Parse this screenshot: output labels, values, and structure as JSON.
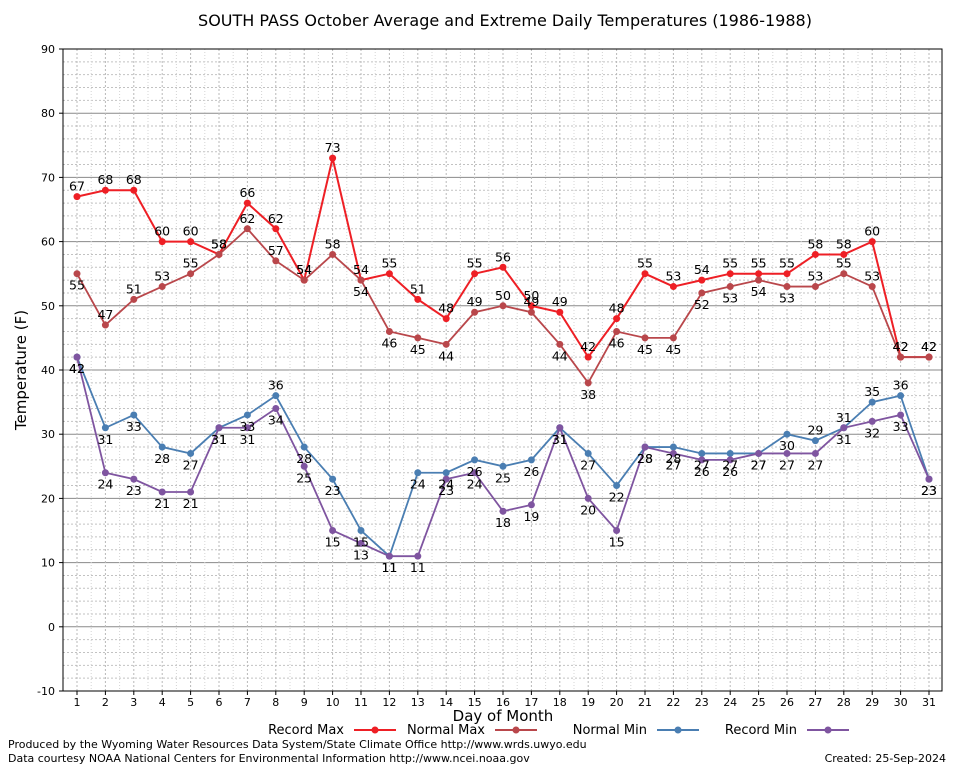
{
  "chart_data": {
    "type": "line",
    "title": "SOUTH PASS October Average and Extreme Daily Temperatures (1986-1988)",
    "xlabel": "Day of Month",
    "ylabel": "Temperature (F)",
    "x": [
      1,
      2,
      3,
      4,
      5,
      6,
      7,
      8,
      9,
      10,
      11,
      12,
      13,
      14,
      15,
      16,
      17,
      18,
      19,
      20,
      21,
      22,
      23,
      24,
      25,
      26,
      27,
      28,
      29,
      30,
      31
    ],
    "ylim": [
      -10,
      90
    ],
    "yticks": [
      -10,
      0,
      10,
      20,
      30,
      40,
      50,
      60,
      70,
      80,
      90
    ],
    "grid": true,
    "legend": "bottom",
    "series": [
      {
        "name": "Record Max",
        "color": "#ee1f25",
        "values": [
          67,
          68,
          68,
          60,
          60,
          58,
          66,
          62,
          54,
          73,
          54,
          55,
          51,
          48,
          55,
          56,
          50,
          49,
          42,
          48,
          55,
          53,
          54,
          55,
          55,
          55,
          58,
          58,
          60,
          42,
          42
        ],
        "labels": [
          "67",
          "68",
          "68",
          "60",
          "60",
          "58",
          "66",
          "62",
          "54",
          "73",
          "54",
          "55",
          "51",
          "48",
          "55",
          "56",
          "50",
          "49",
          "42",
          "48",
          "55",
          "53",
          "54",
          "55",
          "55",
          "55",
          "58",
          "58",
          "60",
          "42",
          "42"
        ]
      },
      {
        "name": "Normal Max",
        "color": "#b9474b",
        "values": [
          55,
          47,
          51,
          53,
          55,
          58,
          62,
          57,
          54,
          58,
          54,
          46,
          45,
          44,
          49,
          50,
          49,
          44,
          38,
          46,
          45,
          45,
          52,
          53,
          54,
          53,
          53,
          55,
          53,
          42,
          42
        ],
        "labels": [
          "55",
          "47",
          "51",
          "53",
          "55",
          "58",
          "62",
          "57",
          "54",
          "58",
          "54",
          "46",
          "45",
          "44",
          "49",
          "50",
          "49",
          "44",
          "38",
          "46",
          "45",
          "45",
          "52",
          "53",
          "54",
          "53",
          "53",
          "55",
          "53",
          "42",
          "42"
        ]
      },
      {
        "name": "Normal Min",
        "color": "#4a7eb2",
        "values": [
          42,
          31,
          33,
          28,
          27,
          31,
          33,
          36,
          28,
          23,
          15,
          11,
          24,
          24,
          26,
          25,
          26,
          31,
          27,
          22,
          28,
          28,
          27,
          27,
          27,
          30,
          29,
          31,
          35,
          36,
          23
        ],
        "labels": [
          "42",
          "31",
          "33",
          "28",
          "27",
          "31",
          "33",
          "36",
          "28",
          "23",
          "15",
          "11",
          "24",
          "24",
          "26",
          "25",
          "26",
          "31",
          "27",
          "22",
          "28",
          "28",
          "27",
          "27",
          "27",
          "30",
          "29",
          "31",
          "35",
          "36",
          "23"
        ]
      },
      {
        "name": "Record Min",
        "color": "#7f55a0",
        "values": [
          42,
          24,
          23,
          21,
          21,
          31,
          31,
          34,
          25,
          15,
          13,
          11,
          11,
          23,
          24,
          18,
          19,
          31,
          20,
          15,
          28,
          27,
          26,
          26,
          27,
          27,
          27,
          31,
          32,
          33,
          23
        ],
        "labels": [
          "42",
          "24",
          "23",
          "21",
          "21",
          "31",
          "31",
          "34",
          "25",
          "15",
          "13",
          "11",
          "11",
          "23",
          "24",
          "18",
          "19",
          "31",
          "20",
          "15",
          "28",
          "27",
          "26",
          "26",
          "27",
          "27",
          "27",
          "31",
          "32",
          "33",
          "23"
        ]
      }
    ]
  },
  "footer": {
    "produced_by": "Produced by the Wyoming Water Resources Data System/State Climate Office http://www.wrds.uwyo.edu",
    "courtesy": "Data courtesy NOAA National Centers for Environmental Information http://www.ncei.noaa.gov",
    "created": "Created:  25-Sep-2024"
  }
}
